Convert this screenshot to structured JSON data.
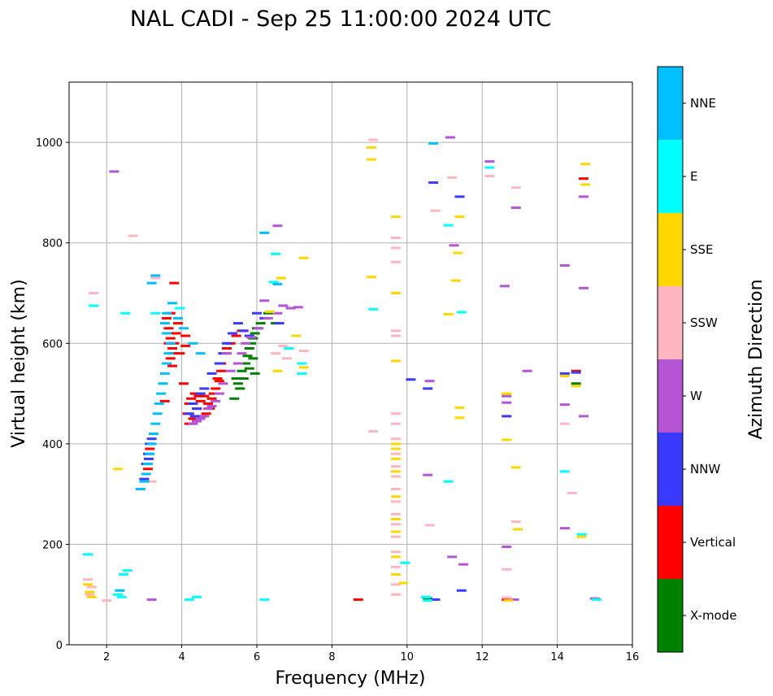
{
  "chart_data": {
    "type": "scatter",
    "title": "NAL CADI - Sep 25 11:00:00 2024 UTC",
    "xlabel": "Frequency (MHz)",
    "ylabel": "Virtual height (km)",
    "xlim": [
      1,
      16
    ],
    "ylim": [
      0,
      1120
    ],
    "xticks": [
      2,
      4,
      6,
      8,
      10,
      12,
      14,
      16
    ],
    "yticks": [
      0,
      200,
      400,
      600,
      800,
      1000
    ],
    "grid": true,
    "colorbar": {
      "label": "Azimuth Direction",
      "categories": [
        "X-mode",
        "Vertical",
        "NNW",
        "W",
        "SSW",
        "SSE",
        "E",
        "NNE"
      ],
      "colors": [
        "#008000",
        "#ff0000",
        "#3a3aff",
        "#b455d6",
        "#ffb6c1",
        "#ffd700",
        "#00ffff",
        "#00bfff"
      ]
    },
    "series": [
      {
        "name": "X-mode",
        "points": [
          [
            5.45,
            530
          ],
          [
            5.55,
            510
          ],
          [
            5.6,
            545
          ],
          [
            5.7,
            560
          ],
          [
            5.75,
            575
          ],
          [
            5.8,
            590
          ],
          [
            5.85,
            600
          ],
          [
            5.9,
            610
          ],
          [
            5.95,
            620
          ],
          [
            6.0,
            630
          ],
          [
            5.65,
            530
          ],
          [
            5.5,
            520
          ],
          [
            5.8,
            550
          ],
          [
            5.9,
            570
          ],
          [
            6.1,
            640
          ],
          [
            6.3,
            660
          ],
          [
            6.5,
            640
          ],
          [
            10.55,
            92
          ],
          [
            14.5,
            520
          ],
          [
            5.4,
            490
          ],
          [
            5.95,
            540
          ]
        ]
      },
      {
        "name": "Vertical",
        "points": [
          [
            3.6,
            650
          ],
          [
            3.65,
            630
          ],
          [
            3.7,
            610
          ],
          [
            3.75,
            590
          ],
          [
            3.8,
            600
          ],
          [
            3.85,
            620
          ],
          [
            3.9,
            640
          ],
          [
            3.7,
            570
          ],
          [
            3.75,
            555
          ],
          [
            3.8,
            580
          ],
          [
            3.65,
            600
          ],
          [
            3.7,
            660
          ],
          [
            3.8,
            720
          ],
          [
            4.1,
            615
          ],
          [
            4.1,
            595
          ],
          [
            4.2,
            480
          ],
          [
            4.15,
            460
          ],
          [
            4.2,
            440
          ],
          [
            4.3,
            450
          ],
          [
            4.4,
            470
          ],
          [
            4.5,
            485
          ],
          [
            4.6,
            495
          ],
          [
            4.7,
            480
          ],
          [
            4.8,
            490
          ],
          [
            4.9,
            510
          ],
          [
            5.0,
            525
          ],
          [
            5.05,
            545
          ],
          [
            4.95,
            530
          ],
          [
            4.85,
            500
          ],
          [
            4.75,
            470
          ],
          [
            4.65,
            460
          ],
          [
            4.55,
            455
          ],
          [
            4.45,
            495
          ],
          [
            4.35,
            500
          ],
          [
            4.25,
            490
          ],
          [
            5.2,
            590
          ],
          [
            5.3,
            600
          ],
          [
            5.45,
            615
          ],
          [
            5.6,
            625
          ],
          [
            5.05,
            560
          ],
          [
            3.1,
            350
          ],
          [
            3.15,
            390
          ],
          [
            8.7,
            90
          ],
          [
            12.65,
            90
          ],
          [
            14.5,
            545
          ],
          [
            14.7,
            928
          ],
          [
            3.55,
            485
          ],
          [
            3.95,
            580
          ],
          [
            4.05,
            520
          ]
        ]
      },
      {
        "name": "NNW",
        "points": [
          [
            3.1,
            380
          ],
          [
            3.15,
            400
          ],
          [
            3.05,
            360
          ],
          [
            3.2,
            410
          ],
          [
            3.0,
            330
          ],
          [
            3.12,
            370
          ],
          [
            4.2,
            460
          ],
          [
            4.35,
            455
          ],
          [
            4.5,
            500
          ],
          [
            4.4,
            470
          ],
          [
            4.3,
            480
          ],
          [
            4.6,
            510
          ],
          [
            4.8,
            540
          ],
          [
            5.0,
            560
          ],
          [
            5.1,
            580
          ],
          [
            5.2,
            600
          ],
          [
            5.35,
            620
          ],
          [
            5.5,
            640
          ],
          [
            5.65,
            625
          ],
          [
            5.8,
            615
          ],
          [
            6.0,
            660
          ],
          [
            6.2,
            650
          ],
          [
            6.6,
            640
          ],
          [
            10.1,
            528
          ],
          [
            10.55,
            510
          ],
          [
            10.7,
            920
          ],
          [
            10.75,
            90
          ],
          [
            11.45,
            108
          ],
          [
            11.4,
            892
          ],
          [
            12.65,
            455
          ],
          [
            14.5,
            542
          ],
          [
            14.2,
            540
          ]
        ]
      },
      {
        "name": "W",
        "points": [
          [
            4.3,
            440
          ],
          [
            4.4,
            445
          ],
          [
            4.5,
            450
          ],
          [
            4.6,
            455
          ],
          [
            4.7,
            470
          ],
          [
            4.8,
            475
          ],
          [
            4.9,
            485
          ],
          [
            5.0,
            500
          ],
          [
            5.1,
            520
          ],
          [
            5.3,
            545
          ],
          [
            5.5,
            560
          ],
          [
            5.6,
            580
          ],
          [
            5.7,
            600
          ],
          [
            5.85,
            612
          ],
          [
            6.05,
            630
          ],
          [
            6.3,
            650
          ],
          [
            6.55,
            660
          ],
          [
            6.7,
            675
          ],
          [
            6.9,
            670
          ],
          [
            7.1,
            672
          ],
          [
            6.2,
            685
          ],
          [
            3.2,
            90
          ],
          [
            2.2,
            942
          ],
          [
            4.4,
            445
          ],
          [
            5.2,
            580
          ],
          [
            10.6,
            525
          ],
          [
            10.55,
            338
          ],
          [
            11.15,
            1010
          ],
          [
            11.25,
            795
          ],
          [
            11.2,
            175
          ],
          [
            11.5,
            160
          ],
          [
            12.2,
            962
          ],
          [
            12.65,
            495
          ],
          [
            12.65,
            482
          ],
          [
            12.65,
            195
          ],
          [
            12.9,
            870
          ],
          [
            13.2,
            545
          ],
          [
            12.85,
            90
          ],
          [
            14.2,
            478
          ],
          [
            14.2,
            232
          ],
          [
            14.2,
            755
          ],
          [
            14.7,
            892
          ],
          [
            14.7,
            710
          ],
          [
            14.7,
            455
          ],
          [
            15.0,
            92
          ],
          [
            12.6,
            714
          ],
          [
            6.55,
            834
          ]
        ]
      },
      {
        "name": "SSW",
        "points": [
          [
            1.55,
            100
          ],
          [
            1.5,
            130
          ],
          [
            1.6,
            115
          ],
          [
            2.0,
            88
          ],
          [
            3.2,
            325
          ],
          [
            3.3,
            730
          ],
          [
            9.1,
            1005
          ],
          [
            9.1,
            425
          ],
          [
            9.7,
            460
          ],
          [
            9.7,
            440
          ],
          [
            9.7,
            410
          ],
          [
            9.7,
            380
          ],
          [
            9.7,
            355
          ],
          [
            9.7,
            335
          ],
          [
            9.7,
            310
          ],
          [
            9.7,
            285
          ],
          [
            9.7,
            260
          ],
          [
            9.7,
            240
          ],
          [
            9.7,
            215
          ],
          [
            9.7,
            185
          ],
          [
            9.7,
            155
          ],
          [
            9.7,
            120
          ],
          [
            9.7,
            100
          ],
          [
            9.7,
            762
          ],
          [
            9.7,
            790
          ],
          [
            9.7,
            810
          ],
          [
            9.7,
            615
          ],
          [
            9.7,
            625
          ],
          [
            10.6,
            238
          ],
          [
            11.2,
            930
          ],
          [
            10.75,
            864
          ],
          [
            12.2,
            933
          ],
          [
            12.65,
            150
          ],
          [
            12.9,
            910
          ],
          [
            12.9,
            245
          ],
          [
            14.4,
            302
          ],
          [
            14.2,
            440
          ],
          [
            6.7,
            595
          ],
          [
            6.8,
            570
          ],
          [
            6.5,
            580
          ],
          [
            7.25,
            585
          ],
          [
            1.65,
            700
          ],
          [
            2.7,
            814
          ],
          [
            12.65,
            94
          ]
        ]
      },
      {
        "name": "SSE",
        "points": [
          [
            1.5,
            120
          ],
          [
            1.55,
            105
          ],
          [
            1.6,
            95
          ],
          [
            2.3,
            350
          ],
          [
            9.05,
            990
          ],
          [
            9.05,
            966
          ],
          [
            9.05,
            732
          ],
          [
            9.7,
            400
          ],
          [
            9.7,
            390
          ],
          [
            9.7,
            370
          ],
          [
            9.7,
            345
          ],
          [
            9.7,
            295
          ],
          [
            9.7,
            250
          ],
          [
            9.7,
            225
          ],
          [
            9.7,
            175
          ],
          [
            9.7,
            140
          ],
          [
            9.7,
            565
          ],
          [
            9.7,
            700
          ],
          [
            9.7,
            852
          ],
          [
            9.9,
            123
          ],
          [
            11.1,
            658
          ],
          [
            11.3,
            725
          ],
          [
            11.35,
            780
          ],
          [
            11.4,
            852
          ],
          [
            11.4,
            472
          ],
          [
            11.4,
            452
          ],
          [
            12.65,
            500
          ],
          [
            12.65,
            408
          ],
          [
            12.9,
            353
          ],
          [
            12.95,
            230
          ],
          [
            14.2,
            535
          ],
          [
            14.75,
            957
          ],
          [
            14.75,
            916
          ],
          [
            14.65,
            215
          ],
          [
            14.5,
            515
          ],
          [
            12.7,
            88
          ],
          [
            6.35,
            663
          ],
          [
            6.55,
            545
          ],
          [
            7.05,
            615
          ],
          [
            7.25,
            552
          ],
          [
            7.25,
            770
          ],
          [
            6.65,
            730
          ]
        ]
      },
      {
        "name": "E",
        "points": [
          [
            1.5,
            180
          ],
          [
            2.3,
            100
          ],
          [
            2.4,
            95
          ],
          [
            2.45,
            140
          ],
          [
            2.55,
            148
          ],
          [
            2.5,
            660
          ],
          [
            3.3,
            660
          ],
          [
            3.95,
            670
          ],
          [
            4.2,
            90
          ],
          [
            4.4,
            95
          ],
          [
            6.2,
            90
          ],
          [
            6.45,
            722
          ],
          [
            6.5,
            778
          ],
          [
            7.2,
            560
          ],
          [
            9.1,
            668
          ],
          [
            9.95,
            163
          ],
          [
            10.5,
            95
          ],
          [
            10.55,
            88
          ],
          [
            11.1,
            835
          ],
          [
            11.1,
            325
          ],
          [
            11.45,
            662
          ],
          [
            12.2,
            950
          ],
          [
            14.2,
            345
          ],
          [
            14.65,
            220
          ],
          [
            15.05,
            90
          ],
          [
            1.65,
            675
          ],
          [
            6.85,
            590
          ],
          [
            7.2,
            540
          ]
        ]
      },
      {
        "name": "NNE",
        "points": [
          [
            2.9,
            310
          ],
          [
            3.0,
            325
          ],
          [
            3.05,
            340
          ],
          [
            3.1,
            360
          ],
          [
            3.15,
            380
          ],
          [
            3.2,
            400
          ],
          [
            3.25,
            420
          ],
          [
            3.3,
            440
          ],
          [
            3.35,
            460
          ],
          [
            3.4,
            480
          ],
          [
            3.45,
            500
          ],
          [
            3.5,
            520
          ],
          [
            3.55,
            540
          ],
          [
            3.6,
            560
          ],
          [
            3.65,
            580
          ],
          [
            3.7,
            600
          ],
          [
            3.6,
            620
          ],
          [
            3.55,
            640
          ],
          [
            3.6,
            660
          ],
          [
            3.75,
            680
          ],
          [
            3.9,
            650
          ],
          [
            4.05,
            630
          ],
          [
            4.3,
            600
          ],
          [
            4.5,
            580
          ],
          [
            6.2,
            820
          ],
          [
            6.55,
            718
          ],
          [
            3.3,
            735
          ],
          [
            3.2,
            720
          ],
          [
            10.7,
            998
          ],
          [
            2.35,
            108
          ]
        ]
      }
    ]
  }
}
